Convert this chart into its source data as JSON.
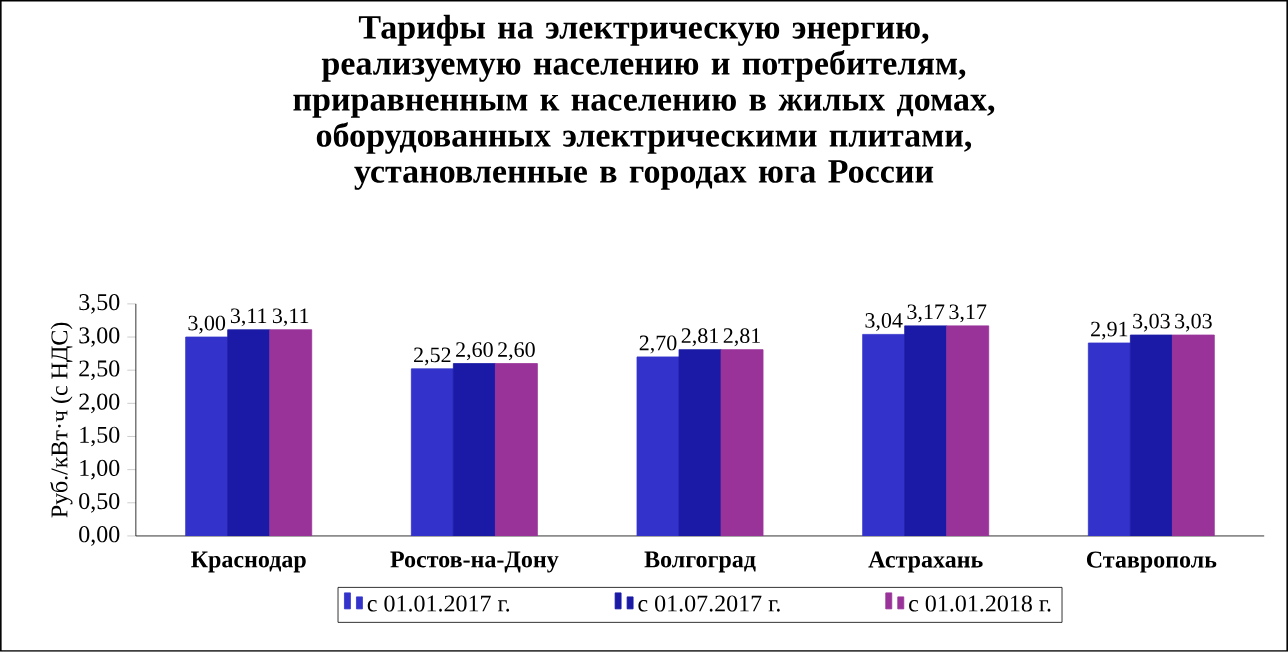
{
  "chart_data": {
    "type": "bar",
    "title": "Тарифы на электрическую энергию, реализуемую населению и потребителям, приравненным к населению в жилых домах, оборудованных электрическими плитами, установленные в городах юга России",
    "ylabel": "Руб./кВт·ч (с НДС)",
    "categories": [
      "Краснодар",
      "Ростов-на-Дону",
      "Волгоград",
      "Астрахань",
      "Ставрополь"
    ],
    "series": [
      {
        "name": "с 01.01.2017   г.",
        "color": "#3333cc",
        "values": [
          3.0,
          2.52,
          2.7,
          3.04,
          2.91
        ],
        "value_labels": [
          "3,00",
          "2,52",
          "2,70",
          "3,04",
          "2,91"
        ]
      },
      {
        "name": "с 01.07.2017   г.",
        "color": "#1a1aa6",
        "values": [
          3.11,
          2.6,
          2.81,
          3.17,
          3.03
        ],
        "value_labels": [
          "3,11",
          "2,60",
          "2,81",
          "3,17",
          "3,03"
        ]
      },
      {
        "name": "с 01.01.2018   г.",
        "color": "#993399",
        "values": [
          3.11,
          2.6,
          2.81,
          3.17,
          3.03
        ],
        "value_labels": [
          "3,11",
          "2,60",
          "2,81",
          "3,17",
          "3,03"
        ]
      }
    ],
    "ylim": [
      0,
      3.5
    ],
    "yticks": [
      {
        "value": 0,
        "label": "0,00"
      },
      {
        "value": 0.5,
        "label": "0,50"
      },
      {
        "value": 1,
        "label": "1,00"
      },
      {
        "value": 1.5,
        "label": "1,50"
      },
      {
        "value": 2,
        "label": "2,00"
      },
      {
        "value": 2.5,
        "label": "2,50"
      },
      {
        "value": 3,
        "label": "3,00"
      },
      {
        "value": 3.5,
        "label": "3,50"
      }
    ],
    "grid": false,
    "legend": "bottom"
  }
}
